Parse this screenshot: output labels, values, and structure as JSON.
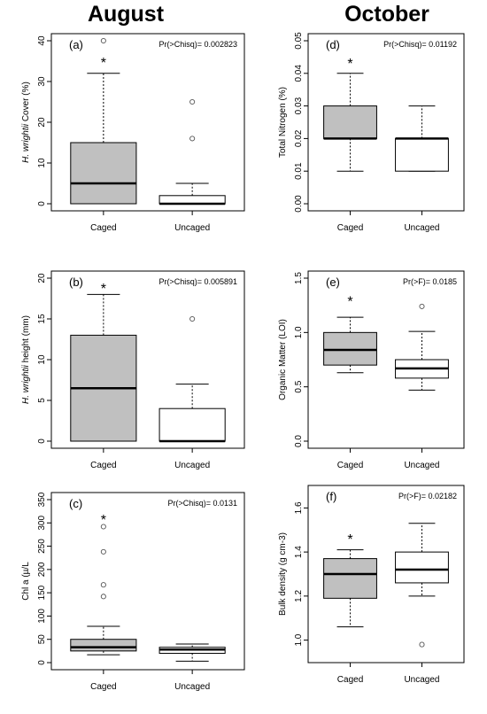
{
  "column_titles": {
    "left": "August",
    "right": "October"
  },
  "chart_data": [
    {
      "type": "box",
      "panel_label": "(a)",
      "stat_text": "Pr(>Chisq)= 0.002823",
      "ylabel_italic": "H. wrightii",
      "ylabel_rest": " Cover (%)",
      "ylim": [
        0,
        40
      ],
      "yticks": [
        0,
        10,
        20,
        30,
        40
      ],
      "ytick_labels": [
        "0",
        "10",
        "20",
        "30",
        "40"
      ],
      "categories": [
        "Caged",
        "Uncaged"
      ],
      "fills": [
        "#c0c0c0",
        "#ffffff"
      ],
      "boxes": [
        {
          "whisker_low": 0,
          "q1": 0,
          "median": 5,
          "q3": 15,
          "whisker_high": 32,
          "outliers": [
            40
          ]
        },
        {
          "whisker_low": 0,
          "q1": 0,
          "median": 0,
          "q3": 2,
          "whisker_high": 5,
          "outliers": [
            16,
            25
          ]
        }
      ],
      "significance": {
        "box": 0,
        "y": 35,
        "text": "*"
      }
    },
    {
      "type": "box",
      "panel_label": "(b)",
      "stat_text": "Pr(>Chisq)= 0.005891",
      "ylabel_italic": "H. wrightii",
      "ylabel_rest": " height (mm)",
      "ylim": [
        0,
        20
      ],
      "yticks": [
        0,
        5,
        10,
        15,
        20
      ],
      "ytick_labels": [
        "0",
        "5",
        "10",
        "15",
        "20"
      ],
      "categories": [
        "Caged",
        "Uncaged"
      ],
      "fills": [
        "#c0c0c0",
        "#ffffff"
      ],
      "boxes": [
        {
          "whisker_low": 0,
          "q1": 0,
          "median": 6.5,
          "q3": 13,
          "whisker_high": 18,
          "outliers": []
        },
        {
          "whisker_low": 0,
          "q1": 0,
          "median": 0,
          "q3": 4,
          "whisker_high": 7,
          "outliers": [
            15
          ]
        }
      ],
      "significance": {
        "box": 0,
        "y": 18.9,
        "text": "*"
      }
    },
    {
      "type": "box",
      "panel_label": "(c)",
      "stat_text": "Pr(>Chisq)= 0.0131",
      "ylabel_italic": "",
      "ylabel_rest": "Chl a (µ/L",
      "ylim": [
        0,
        350
      ],
      "yticks": [
        0,
        50,
        100,
        150,
        200,
        250,
        300,
        350
      ],
      "ytick_labels": [
        "0",
        "50",
        "100",
        "150",
        "200",
        "250",
        "300",
        "350"
      ],
      "categories": [
        "Caged",
        "Uncaged"
      ],
      "fills": [
        "#c0c0c0",
        "#ffffff"
      ],
      "boxes": [
        {
          "whisker_low": 17,
          "q1": 25,
          "median": 33,
          "q3": 50,
          "whisker_high": 78,
          "outliers": [
            142,
            167,
            238,
            292
          ]
        },
        {
          "whisker_low": 3,
          "q1": 20,
          "median": 28,
          "q3": 33,
          "whisker_high": 40,
          "outliers": []
        }
      ],
      "significance": {
        "box": 0,
        "y": 310,
        "text": "*"
      }
    },
    {
      "type": "box",
      "panel_label": "(d)",
      "stat_text": "Pr(>Chisq)= 0.01192",
      "ylabel_italic": "",
      "ylabel_rest": "Total Nitrogen (%)",
      "ylim": [
        0,
        0.05
      ],
      "yticks": [
        0,
        0.01,
        0.02,
        0.03,
        0.04,
        0.05
      ],
      "ytick_labels": [
        "0.00",
        "0.01",
        "0.02",
        "0.03",
        "0.04",
        "0.05"
      ],
      "categories": [
        "Caged",
        "Uncaged"
      ],
      "fills": [
        "#c0c0c0",
        "#ffffff"
      ],
      "boxes": [
        {
          "whisker_low": 0.01,
          "q1": 0.02,
          "median": 0.02,
          "q3": 0.03,
          "whisker_high": 0.04,
          "outliers": []
        },
        {
          "whisker_low": 0.01,
          "q1": 0.01,
          "median": 0.02,
          "q3": 0.02,
          "whisker_high": 0.03,
          "outliers": []
        }
      ],
      "significance": {
        "box": 0,
        "y": 0.0435,
        "text": "*"
      }
    },
    {
      "type": "box",
      "panel_label": "(e)",
      "stat_text": "Pr(>F)= 0.0185",
      "ylabel_italic": "",
      "ylabel_rest": "Organic Matter (LOI)",
      "ylim": [
        0,
        1.5
      ],
      "yticks": [
        0,
        0.5,
        1.0,
        1.5
      ],
      "ytick_labels": [
        "0.0",
        "0.5",
        "1.0",
        "1.5"
      ],
      "categories": [
        "Caged",
        "Uncaged"
      ],
      "fills": [
        "#c0c0c0",
        "#ffffff"
      ],
      "boxes": [
        {
          "whisker_low": 0.63,
          "q1": 0.7,
          "median": 0.84,
          "q3": 1.0,
          "whisker_high": 1.14,
          "outliers": []
        },
        {
          "whisker_low": 0.47,
          "q1": 0.58,
          "median": 0.67,
          "q3": 0.75,
          "whisker_high": 1.01,
          "outliers": [
            1.24
          ]
        }
      ],
      "significance": {
        "box": 0,
        "y": 1.3,
        "text": "*"
      }
    },
    {
      "type": "box",
      "panel_label": "(f)",
      "stat_text": "Pr(>F)= 0.02182",
      "ylabel_italic": "",
      "ylabel_rest": "Bulk density (g cm-3)",
      "ylim": [
        0.93,
        1.67
      ],
      "yticks": [
        1.0,
        1.2,
        1.4,
        1.6
      ],
      "ytick_labels": [
        "1.0",
        "1.2",
        "1.4",
        "1.6"
      ],
      "categories": [
        "Caged",
        "Uncaged"
      ],
      "fills": [
        "#c0c0c0",
        "#ffffff"
      ],
      "boxes": [
        {
          "whisker_low": 1.06,
          "q1": 1.19,
          "median": 1.3,
          "q3": 1.37,
          "whisker_high": 1.41,
          "outliers": []
        },
        {
          "whisker_low": 1.2,
          "q1": 1.26,
          "median": 1.32,
          "q3": 1.4,
          "whisker_high": 1.53,
          "outliers": [
            0.98
          ]
        }
      ],
      "significance": {
        "box": 0,
        "y": 1.465,
        "text": "*"
      }
    }
  ]
}
